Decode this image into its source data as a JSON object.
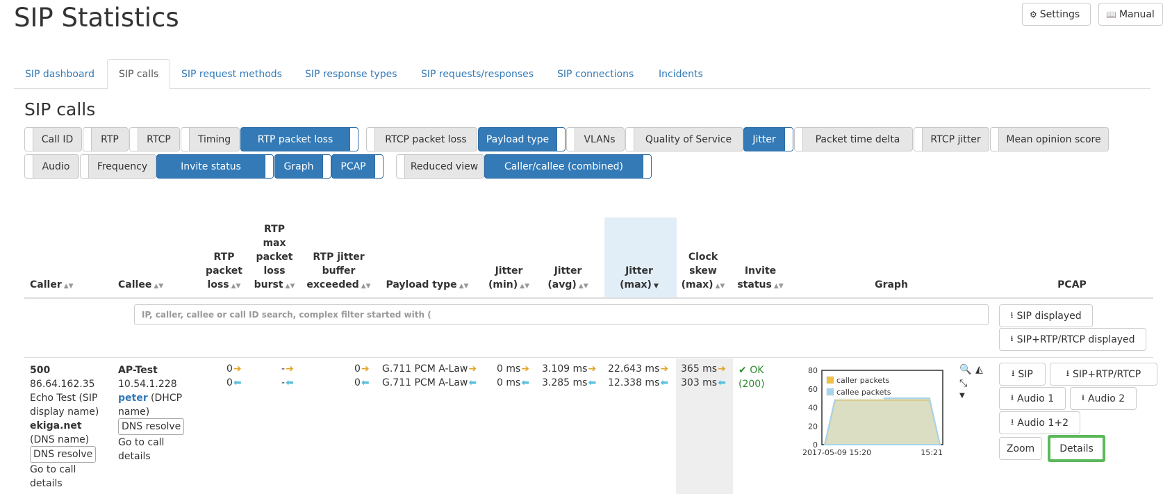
{
  "page_title": "SIP Statistics",
  "header_buttons": {
    "settings": "Settings",
    "manual": "Manual"
  },
  "tabs": [
    "SIP dashboard",
    "SIP calls",
    "SIP request methods",
    "SIP response types",
    "SIP requests/responses",
    "SIP connections",
    "Incidents"
  ],
  "active_tab": "SIP calls",
  "section_title": "SIP calls",
  "toggles_row1": [
    {
      "label": "Call ID",
      "on": false
    },
    {
      "label": "RTP",
      "on": false
    },
    {
      "label": "RTCP",
      "on": false
    },
    {
      "label": "Timing",
      "on": false
    },
    {
      "label": "RTP packet loss",
      "on": true
    },
    {
      "label": "RTCP packet loss",
      "on": false
    },
    {
      "label": "Payload type",
      "on": true
    },
    {
      "label": "VLANs",
      "on": false
    },
    {
      "label": "Quality of Service",
      "on": false
    },
    {
      "label": "Jitter",
      "on": true
    },
    {
      "label": "Packet time delta",
      "on": false
    },
    {
      "label": "RTCP jitter",
      "on": false
    },
    {
      "label": "Mean opinion score",
      "on": false
    }
  ],
  "toggles_row2": [
    {
      "label": "Audio",
      "on": false
    },
    {
      "label": "Frequency",
      "on": false
    },
    {
      "label": "Invite status",
      "on": true
    },
    {
      "label": "Graph",
      "on": true
    },
    {
      "label": "PCAP",
      "on": true
    },
    {
      "label": "Reduced view",
      "on": false
    },
    {
      "label": "Caller/callee (combined)",
      "on": true
    }
  ],
  "columns": {
    "caller": "Caller",
    "callee": "Callee",
    "rtp_packet_loss": [
      "RTP",
      "packet",
      "loss"
    ],
    "rtp_max_loss_burst": [
      "RTP",
      "max",
      "packet",
      "loss",
      "burst"
    ],
    "rtp_jitter_buffer": [
      "RTP jitter",
      "buffer",
      "exceeded"
    ],
    "payload_type": "Payload type",
    "jitter_min": [
      "Jitter",
      "(min)"
    ],
    "jitter_avg": [
      "Jitter",
      "(avg)"
    ],
    "jitter_max": [
      "Jitter",
      "(max)"
    ],
    "clock_skew": [
      "Clock",
      "skew",
      "(max)"
    ],
    "invite_status": [
      "Invite",
      "status"
    ],
    "graph": "Graph",
    "pcap": "PCAP"
  },
  "search": {
    "placeholder": "IP, caller, callee or call ID search, complex filter started with ("
  },
  "pcap_filter_buttons": {
    "sip_displayed": "SIP displayed",
    "sip_rtp_rtcp_displayed": "SIP+RTP/RTCP displayed"
  },
  "row": {
    "caller": {
      "number": "500",
      "ip": "86.64.162.35",
      "display_name": "Echo Test",
      "display_name_note": "(SIP display name)",
      "domain": "ekiga.net",
      "domain_note": "(DNS name)",
      "dns_resolve": "DNS resolve",
      "details_link": "Go to call details"
    },
    "callee": {
      "name": "AP-Test",
      "ip": "10.54.1.228",
      "dhcp_name": "peter",
      "dhcp_note": "(DHCP name)",
      "dns_resolve": "DNS resolve",
      "details_link": "Go to call details"
    },
    "rtp_packet_loss": [
      "0",
      "0"
    ],
    "rtp_max_loss_burst": [
      "-",
      "-"
    ],
    "rtp_jitter_buffer": [
      "0",
      "0"
    ],
    "payload_type": [
      "G.711 PCM A-Law",
      "G.711 PCM A-Law"
    ],
    "jitter_min": [
      "0 ms",
      "0 ms"
    ],
    "jitter_avg": [
      "3.109 ms",
      "3.285 ms"
    ],
    "jitter_max": [
      "22.643 ms",
      "12.338 ms"
    ],
    "clock_skew": [
      "365 ms",
      "303 ms"
    ],
    "invite_status": {
      "text": "OK",
      "code": "(200)"
    },
    "pcap_buttons": {
      "sip": "SIP",
      "sip_rtp_rtcp": "SIP+RTP/RTCP",
      "audio1": "Audio 1",
      "audio2": "Audio 2",
      "audio12": "Audio 1+2",
      "zoom": "Zoom",
      "details": "Details"
    }
  },
  "arrow_glyphs": {
    "right": "➔",
    "left": "⬅"
  },
  "colors": {
    "accent": "#337ab7",
    "caller_series": "#f0c040",
    "callee_series": "#a6d4f0",
    "ok": "#2e8b2e",
    "highlight": "#5cb85c"
  },
  "chart_data": {
    "type": "area",
    "legend": [
      "caller packets",
      "callee packets"
    ],
    "yticks": [
      0,
      20,
      40,
      60,
      80
    ],
    "ylim": [
      0,
      80
    ],
    "xticks": [
      "2017-05-09 15:20",
      "15:21"
    ],
    "series": [
      {
        "name": "caller packets",
        "values": [
          0,
          48,
          48,
          48,
          48,
          48,
          48,
          48,
          48,
          48,
          48,
          0
        ]
      },
      {
        "name": "callee packets",
        "values": [
          0,
          50,
          50,
          50,
          50,
          50,
          50,
          50,
          50,
          50,
          50,
          0
        ]
      }
    ]
  }
}
